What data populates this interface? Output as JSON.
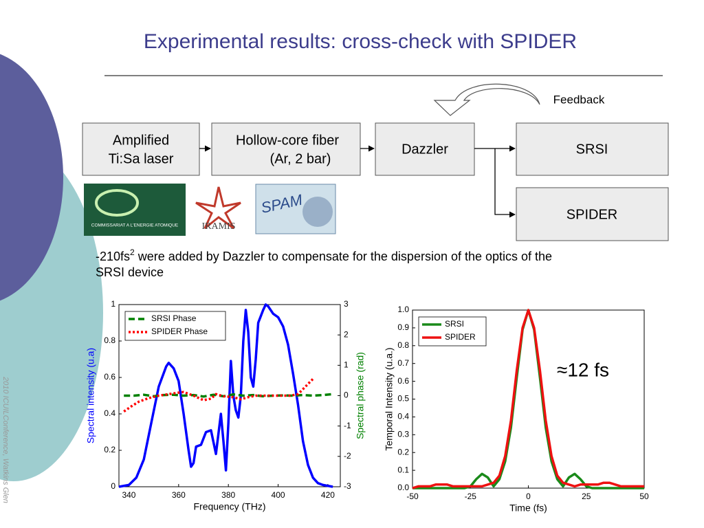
{
  "title": "Experimental results: cross-check with SPIDER",
  "side_note": "2010 ICUILConference, Watkins Glen",
  "diagram": {
    "nodes": [
      {
        "lines": [
          "Amplified",
          "Ti:Sa laser"
        ]
      },
      {
        "lines": [
          "Hollow-core fiber",
          "(Ar, 2 bar)"
        ]
      },
      {
        "lines": [
          "Dazzler"
        ]
      },
      {
        "lines": [
          "SRSI"
        ]
      },
      {
        "lines": [
          "SPIDER"
        ]
      }
    ],
    "feedback": "Feedback"
  },
  "logos": [
    "COMMISSARIAT A L'ENERGIE ATOMIQUE",
    "IRAMIS",
    "SPAM"
  ],
  "note": {
    "before": "-210fs",
    "sup": "2",
    "line1": "were added by Dazzler to compensate for the dispersion of the optics of the",
    "line2": "SRSI device"
  },
  "chart_data": [
    {
      "type": "line",
      "xlabel": "Frequency (THz)",
      "ylabel": "Spectral intensity (u.a)",
      "y2label": "Spectral phase (rad)",
      "y_color": "#0000ff",
      "y2_color": "#008000",
      "xlim": [
        336,
        425
      ],
      "xticks": [
        340,
        360,
        380,
        400,
        420
      ],
      "ylim": [
        0,
        1
      ],
      "yticks": [
        0,
        0.2,
        0.4,
        0.6,
        0.8,
        1
      ],
      "y2lim": [
        -3,
        3
      ],
      "y2ticks": [
        -3,
        -2,
        -1,
        0,
        1,
        2,
        3
      ],
      "legend": "upper left",
      "series": [
        {
          "color": "#0000ff",
          "line_style": "solid",
          "x": [
            336,
            340,
            343,
            346,
            349,
            352,
            355,
            356,
            358,
            360,
            362,
            364,
            365,
            366,
            367,
            369,
            371,
            373,
            375,
            377,
            378,
            379,
            380,
            381,
            382,
            383,
            384,
            385,
            386,
            387,
            388,
            389,
            390,
            391,
            392,
            394,
            395,
            396,
            398,
            400,
            402,
            404,
            406,
            408,
            410,
            412,
            414,
            416,
            418,
            422
          ],
          "values": [
            0,
            0.01,
            0.05,
            0.15,
            0.35,
            0.55,
            0.66,
            0.68,
            0.65,
            0.58,
            0.4,
            0.2,
            0.11,
            0.13,
            0.22,
            0.23,
            0.3,
            0.31,
            0.18,
            0.4,
            0.25,
            0.09,
            0.35,
            0.69,
            0.5,
            0.42,
            0.38,
            0.5,
            0.8,
            0.97,
            0.85,
            0.6,
            0.55,
            0.7,
            0.9,
            0.97,
            1,
            0.99,
            0.95,
            0.93,
            0.88,
            0.78,
            0.62,
            0.45,
            0.25,
            0.12,
            0.05,
            0.02,
            0.01,
            0
          ]
        },
        {
          "name": "SRSI Phase",
          "color": "#008000",
          "line_style": "dashed",
          "axis": "y2",
          "x": [
            338,
            342,
            346,
            350,
            354,
            358,
            362,
            366,
            370,
            374,
            378,
            382,
            386,
            390,
            394,
            398,
            402,
            406,
            410,
            414,
            418,
            422
          ],
          "values": [
            0,
            0,
            0.03,
            -0.02,
            0.02,
            0.03,
            0,
            0.02,
            -0.03,
            0.03,
            -0.02,
            0.04,
            0,
            0.02,
            -0.02,
            0,
            0.01,
            0,
            0.02,
            0,
            0.02,
            0.05
          ]
        },
        {
          "name": "SPIDER Phase",
          "color": "#ff0000",
          "line_style": "dotted",
          "axis": "y2",
          "x": [
            338,
            341,
            344,
            348,
            352,
            356,
            360,
            362,
            366,
            370,
            373,
            375,
            378,
            382,
            385,
            388,
            391,
            395,
            400,
            405,
            408,
            411,
            414
          ],
          "values": [
            -0.52,
            -0.35,
            -0.2,
            -0.08,
            0,
            0.05,
            0.1,
            0.12,
            0,
            -0.15,
            -0.1,
            0.05,
            -0.02,
            -0.05,
            -0.12,
            -0.05,
            0,
            0,
            0,
            0,
            0.05,
            0.3,
            0.55
          ]
        }
      ]
    },
    {
      "type": "line",
      "xlabel": "Time (fs)",
      "ylabel": "Temporal Intensity (u.a.)",
      "xlim": [
        -50,
        50
      ],
      "xticks": [
        -50,
        -25,
        0,
        25,
        50
      ],
      "ylim": [
        0,
        1
      ],
      "yticks": [
        {
          "value": 0,
          "label": "0.0"
        },
        0.1,
        0.2,
        0.3,
        0.4,
        0.5,
        0.6,
        0.7,
        0.8,
        0.9,
        {
          "value": 1,
          "label": "1.0"
        }
      ],
      "legend": "upper left",
      "annotation": "≈12 fs",
      "x": [
        -50,
        -47.5,
        -45,
        -42.5,
        -40,
        -37.5,
        -35,
        -32.5,
        -30,
        -27.5,
        -25,
        -22.5,
        -20,
        -17.5,
        -15,
        -12.5,
        -10,
        -7.5,
        -5,
        -2.5,
        0,
        2.5,
        5,
        7.5,
        10,
        12.5,
        15,
        17.5,
        20,
        22.5,
        25,
        27.5,
        30,
        32.5,
        35,
        37.5,
        40,
        42.5,
        45,
        47.5,
        50
      ],
      "series": [
        {
          "name": "SRSI",
          "color": "#1a8a1a",
          "line_style": "solid",
          "values": [
            0,
            0,
            0,
            0,
            0,
            0,
            0,
            0,
            0,
            0,
            0.01,
            0.05,
            0.08,
            0.06,
            0.01,
            0.05,
            0.15,
            0.34,
            0.62,
            0.89,
            1,
            0.89,
            0.62,
            0.34,
            0.15,
            0.05,
            0.01,
            0.06,
            0.08,
            0.05,
            0.01,
            0,
            0,
            0,
            0,
            0,
            0,
            0,
            0,
            0,
            0
          ]
        },
        {
          "name": "SPIDER",
          "color": "#ee1111",
          "line_style": "solid",
          "values": [
            0,
            0.01,
            0.01,
            0.01,
            0.02,
            0.02,
            0.02,
            0.01,
            0.01,
            0.01,
            0.01,
            0.01,
            0.01,
            0.02,
            0.03,
            0.07,
            0.18,
            0.38,
            0.66,
            0.9,
            1,
            0.9,
            0.66,
            0.38,
            0.18,
            0.07,
            0.03,
            0.02,
            0.01,
            0.02,
            0.02,
            0.02,
            0.02,
            0.03,
            0.03,
            0.02,
            0.01,
            0.01,
            0.01,
            0.01,
            0.01
          ]
        }
      ]
    }
  ]
}
